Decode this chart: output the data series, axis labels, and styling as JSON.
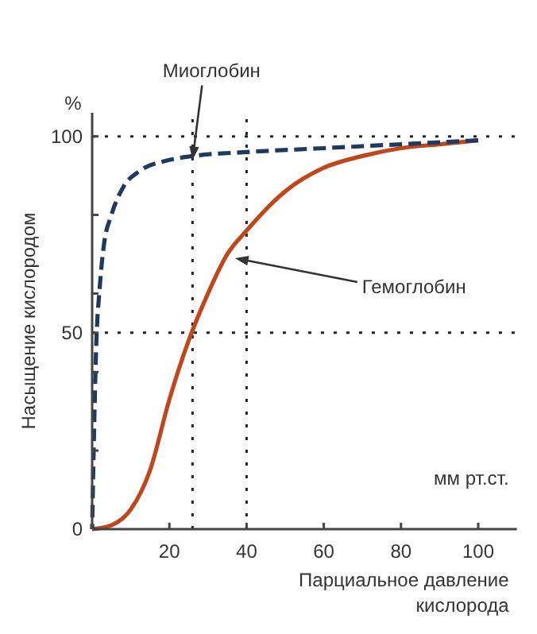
{
  "chart_data": {
    "type": "line",
    "xlabel": "Парциальное давление кислорода",
    "ylabel": "Насыщение кислородом",
    "xlim": [
      0,
      110
    ],
    "ylim": [
      0,
      106
    ],
    "xticks": [
      20,
      40,
      60,
      80,
      100
    ],
    "yticks": [
      0,
      {
        "value": 20,
        "label": null
      },
      {
        "value": 40,
        "label": null
      },
      50,
      {
        "value": 60,
        "label": null
      },
      {
        "value": 80,
        "label": null
      },
      100
    ],
    "grid": false,
    "marker": "none",
    "series": [
      {
        "color": "#1f3a5f",
        "line_style": "dashed",
        "x": [
          0,
          0.5,
          1,
          2,
          3,
          5,
          8,
          12,
          20,
          26,
          40,
          60,
          80,
          100
        ],
        "values": [
          0,
          25,
          45,
          62,
          72,
          80,
          87,
          91,
          94,
          95,
          96,
          97,
          98,
          99
        ]
      },
      {
        "color": "#c0471c",
        "line_style": "solid",
        "x": [
          0,
          5,
          10,
          15,
          20,
          25,
          30,
          35,
          40,
          50,
          60,
          70,
          80,
          90,
          100
        ],
        "values": [
          0,
          1,
          5,
          15,
          33,
          48,
          60,
          70,
          76,
          86,
          92,
          95,
          97,
          98,
          99
        ]
      }
    ],
    "ref_lines": [
      {
        "axis": "y",
        "value": 100,
        "line_style": "dotted",
        "color": "#222222"
      },
      {
        "axis": "y",
        "value": 50,
        "line_style": "dotted",
        "color": "#222222"
      },
      {
        "axis": "x",
        "value": 26,
        "line_style": "dotted",
        "color": "#222222"
      },
      {
        "axis": "x",
        "value": 40,
        "line_style": "dotted",
        "color": "#222222"
      }
    ],
    "annotations": [
      {
        "text": "Миоглобин",
        "x": 26,
        "y": 94
      },
      {
        "text": "Гемоглобин",
        "x": 37,
        "y": 69
      },
      "%",
      "мм рт.ст."
    ]
  }
}
